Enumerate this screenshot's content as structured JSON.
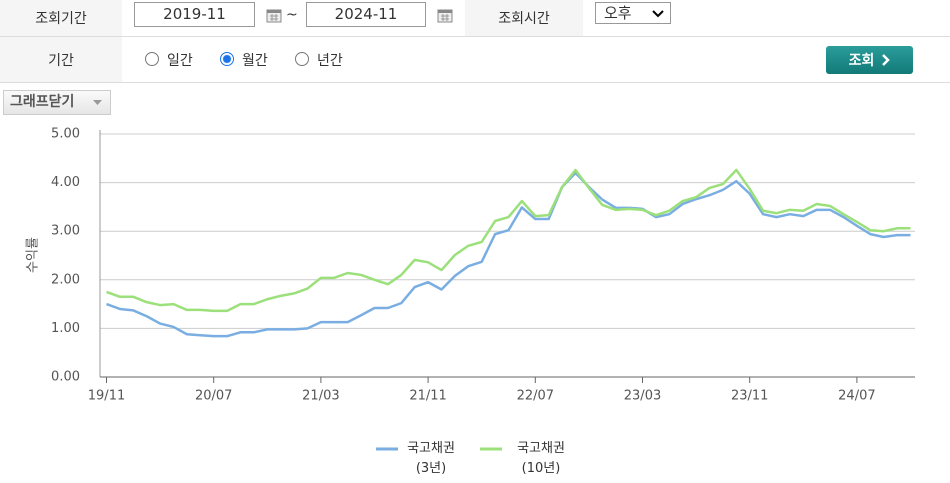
{
  "form": {
    "period_label": "조회기간",
    "start": "2019-11",
    "tilde": "~",
    "end": "2024-11",
    "time_label": "조회시간",
    "time_value": "오후",
    "range_label": "기간",
    "options": [
      "일간",
      "월간",
      "년간"
    ],
    "selected_option": 1,
    "search_button": "조회",
    "graph_toggle": "그래프닫기"
  },
  "chart_data": {
    "type": "line",
    "y_label": "수익률",
    "categories": [
      "19/11",
      null,
      null,
      null,
      null,
      null,
      null,
      null,
      "20/07",
      null,
      null,
      null,
      null,
      null,
      null,
      null,
      "21/03",
      null,
      null,
      null,
      null,
      null,
      null,
      null,
      "21/11",
      null,
      null,
      null,
      null,
      null,
      null,
      null,
      "22/07",
      null,
      null,
      null,
      null,
      null,
      null,
      null,
      "23/03",
      null,
      null,
      null,
      null,
      null,
      null,
      null,
      "23/11",
      null,
      null,
      null,
      null,
      null,
      null,
      null,
      "24/07",
      null,
      null,
      null,
      null
    ],
    "series": [
      {
        "name": "국고채권\n(3년)",
        "color": "#7aaee2",
        "values": [
          1.5,
          1.4,
          1.37,
          1.25,
          1.1,
          1.03,
          0.88,
          0.86,
          0.84,
          0.84,
          0.92,
          0.92,
          0.98,
          0.98,
          0.98,
          1.0,
          1.13,
          1.13,
          1.13,
          1.27,
          1.42,
          1.42,
          1.52,
          1.85,
          1.95,
          1.8,
          2.08,
          2.28,
          2.37,
          2.94,
          3.02,
          3.49,
          3.25,
          3.25,
          3.91,
          4.2,
          3.91,
          3.65,
          3.48,
          3.48,
          3.46,
          3.29,
          3.35,
          3.56,
          3.66,
          3.74,
          3.85,
          4.03,
          3.77,
          3.35,
          3.29,
          3.35,
          3.31,
          3.44,
          3.44,
          3.29,
          3.11,
          2.94,
          2.88,
          2.92,
          2.92
        ]
      },
      {
        "name": "국고채권\n(10년)",
        "color": "#9be07a",
        "values": [
          1.75,
          1.65,
          1.65,
          1.54,
          1.48,
          1.5,
          1.38,
          1.38,
          1.36,
          1.36,
          1.5,
          1.5,
          1.6,
          1.67,
          1.72,
          1.82,
          2.04,
          2.04,
          2.14,
          2.1,
          2.0,
          1.91,
          2.1,
          2.41,
          2.36,
          2.2,
          2.51,
          2.7,
          2.78,
          3.21,
          3.29,
          3.62,
          3.31,
          3.33,
          3.91,
          4.26,
          3.89,
          3.54,
          3.44,
          3.46,
          3.44,
          3.33,
          3.42,
          3.62,
          3.7,
          3.89,
          3.97,
          4.26,
          3.87,
          3.42,
          3.37,
          3.44,
          3.42,
          3.56,
          3.52,
          3.35,
          3.19,
          3.02,
          3.0,
          3.06,
          3.06
        ]
      }
    ],
    "ylim": [
      0,
      5
    ],
    "yticks": [
      {
        "value": 0,
        "label": "0.00"
      },
      {
        "value": 1,
        "label": "1.00"
      },
      {
        "value": 2,
        "label": "2.00"
      },
      {
        "value": 3,
        "label": "3.00"
      },
      {
        "value": 4,
        "label": "4.00"
      },
      {
        "value": 5,
        "label": "5.00"
      }
    ],
    "grid": true
  }
}
